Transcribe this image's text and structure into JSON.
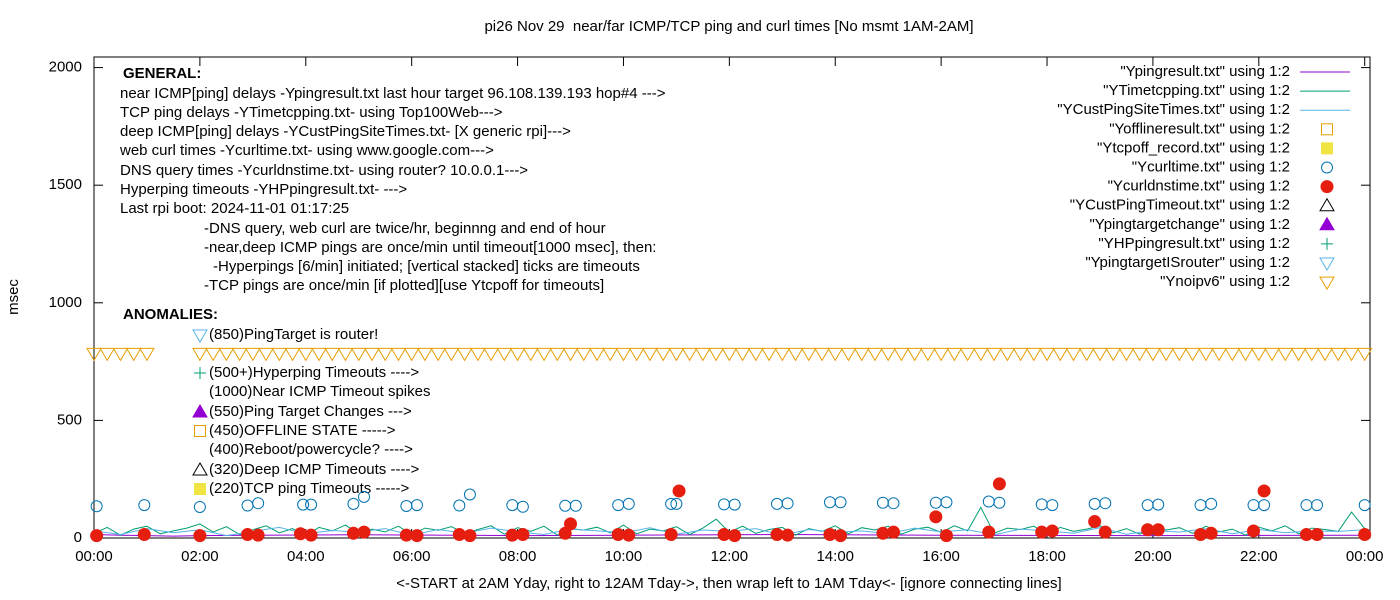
{
  "chart_data": {
    "type": "scatter",
    "title": "pi26 Nov 29  near/far ICMP/TCP ping and curl times [No msmt 1AM-2AM]",
    "x_label": "<-START at 2AM Yday, right to 12AM Tday->, then wrap left to 1AM Tday<- [ignore connecting lines]",
    "y_label": "msec",
    "xlim": [
      0,
      24.1
    ],
    "ylim": [
      0,
      2045
    ],
    "xticks": [
      {
        "value": 0,
        "label": "00:00"
      },
      {
        "value": 2,
        "label": "02:00"
      },
      {
        "value": 4,
        "label": "04:00"
      },
      {
        "value": 6,
        "label": "06:00"
      },
      {
        "value": 8,
        "label": "08:00"
      },
      {
        "value": 10,
        "label": "10:00"
      },
      {
        "value": 12,
        "label": "12:00"
      },
      {
        "value": 14,
        "label": "14:00"
      },
      {
        "value": 16,
        "label": "16:00"
      },
      {
        "value": 18,
        "label": "18:00"
      },
      {
        "value": 20,
        "label": "20:00"
      },
      {
        "value": 22,
        "label": "22:00"
      },
      {
        "value": 24,
        "label": "00:00"
      }
    ],
    "yticks": [
      0,
      500,
      1000,
      1500,
      2000
    ],
    "legend": "top-right",
    "annotations": [
      "GENERAL:",
      "near ICMP[ping] delays -Ypingresult.txt last hour target 96.108.139.193 hop#4 --->",
      "TCP ping delays -YTimetcpping.txt- using Top100Web--->",
      "deep ICMP[ping] delays -YCustPingSiteTimes.txt- [X generic rpi]--->",
      "web curl times -Ycurltime.txt- using www.google.com--->",
      "DNS query times -Ycurldnstime.txt- using router? 10.0.0.1--->",
      "Hyperping timeouts -YHPpingresult.txt- --->",
      "Last rpi boot: 2024-11-01 01:17:25",
      "-DNS query, web curl are twice/hr, beginnng and end of hour",
      "-near,deep ICMP pings are once/min until timeout[1000 msec], then:",
      "-Hyperpings [6/min] initiated; [vertical stacked] ticks are timeouts",
      "-TCP pings are once/min [if plotted][use Ytcpoff for timeouts]",
      "ANOMALIES:",
      "(850)PingTarget is router!",
      "(500+)Hyperping Timeouts ---->",
      "(1000)Near ICMP Timeout spikes",
      "(550)Ping Target Changes --->",
      "(450)OFFLINE STATE ----->",
      "(400)Reboot/powercycle? ---->",
      "(320)Deep ICMP Timeouts ---->",
      "(220)TCP ping Timeouts ----->"
    ],
    "series": [
      {
        "name": "\"Ypingresult.txt\" using 1:2",
        "color": "#9400d3",
        "style": "lines",
        "x": [
          0,
          0.5,
          1,
          1.5,
          2,
          3,
          5,
          8,
          10,
          13,
          16,
          20,
          24
        ],
        "values": [
          15,
          12,
          10,
          8,
          10,
          12,
          14,
          10,
          12,
          15,
          12,
          10,
          12
        ]
      },
      {
        "name": "\"YTimetcpping.txt\" using 1:2",
        "color": "#009e73",
        "style": "lines",
        "x": [
          0,
          0.25,
          0.5,
          0.75,
          1,
          1.25,
          1.5,
          1.75,
          2,
          2.25,
          2.5,
          2.75,
          3,
          3.25,
          3.5,
          3.75,
          4,
          4.25,
          4.5,
          4.75,
          5,
          5.25,
          5.5,
          5.75,
          6,
          6.25,
          6.5,
          6.75,
          7,
          7.25,
          7.5,
          7.75,
          8,
          8.25,
          8.5,
          8.75,
          9,
          9.25,
          9.5,
          9.75,
          10,
          10.25,
          10.5,
          10.75,
          11,
          11.25,
          11.5,
          11.75,
          12,
          12.25,
          12.5,
          12.75,
          13,
          13.25,
          13.5,
          13.75,
          14,
          14.25,
          14.5,
          14.75,
          15,
          15.25,
          15.5,
          15.75,
          16,
          16.25,
          16.5,
          16.75,
          17,
          17.25,
          17.5,
          17.75,
          18,
          18.25,
          18.5,
          18.75,
          19,
          19.25,
          19.5,
          19.75,
          20,
          20.25,
          20.5,
          20.75,
          21,
          21.25,
          21.5,
          21.75,
          22,
          22.25,
          22.5,
          22.75,
          23,
          23.25,
          23.5,
          23.75,
          24
        ],
        "values": [
          20,
          45,
          12,
          38,
          50,
          18,
          30,
          42,
          60,
          25,
          48,
          15,
          35,
          52,
          22,
          40,
          10,
          45,
          30,
          55,
          18,
          38,
          26,
          50,
          14,
          42,
          33,
          48,
          20,
          36,
          52,
          16,
          44,
          28,
          50,
          12,
          40,
          34,
          46,
          22,
          55,
          18,
          38,
          30,
          48,
          15,
          42,
          80,
          25,
          50,
          20,
          36,
          45,
          12,
          40,
          28,
          52,
          18,
          44,
          34,
          50,
          16,
          38,
          46,
          24,
          52,
          30,
          130,
          20,
          42,
          36,
          50,
          14,
          45,
          28,
          38,
          52,
          22,
          40,
          16,
          48,
          34,
          44,
          20,
          50,
          26,
          38,
          12,
          46,
          30,
          52,
          18,
          42,
          36,
          28,
          110,
          40
        ]
      },
      {
        "name": "\"YCustPingSiteTimes.txt\" using 1:2",
        "color": "#56b4e9",
        "style": "lines",
        "x": [
          0,
          0.5,
          1,
          1.5,
          2,
          2.5,
          3,
          3.5,
          4,
          4.5,
          5,
          5.5,
          6,
          6.5,
          7,
          7.5,
          8,
          8.5,
          9,
          9.5,
          10,
          10.5,
          11,
          11.5,
          12,
          12.5,
          13,
          13.5,
          14,
          14.5,
          15,
          15.5,
          16,
          16.5,
          17,
          17.5,
          18,
          18.5,
          19,
          19.5,
          20,
          20.5,
          21,
          21.5,
          22,
          22.5,
          23,
          23.5,
          24
        ],
        "values": [
          30,
          15,
          40,
          22,
          35,
          10,
          28,
          45,
          18,
          32,
          25,
          40,
          12,
          36,
          20,
          42,
          26,
          15,
          38,
          30,
          22,
          44,
          16,
          34,
          28,
          40,
          12,
          36,
          24,
          30,
          18,
          42,
          26,
          35,
          14,
          38,
          30,
          20,
          44,
          16,
          32,
          25,
          40,
          18,
          36,
          22,
          30,
          28,
          35
        ]
      },
      {
        "name": "\"Yofflineresult.txt\" using 1:2",
        "color": "#e69f00",
        "style": "open-square",
        "x": [],
        "values": []
      },
      {
        "name": "\"Ytcpoff_record.txt\" using 1:2",
        "color": "#f0e442",
        "style": "square",
        "x": [],
        "values": []
      },
      {
        "name": "\"Ycurltime.txt\" using 1:2",
        "color": "#0072b2",
        "style": "open-circle",
        "x": [
          0.05,
          0.95,
          2.0,
          2.9,
          3.1,
          3.95,
          4.1,
          4.9,
          5.1,
          5.9,
          6.1,
          6.9,
          7.1,
          7.9,
          8.1,
          8.9,
          9.1,
          9.9,
          10.1,
          10.9,
          11.0,
          11.9,
          12.1,
          12.9,
          13.1,
          13.9,
          14.1,
          14.9,
          15.1,
          15.9,
          16.1,
          16.9,
          17.1,
          17.9,
          18.1,
          18.9,
          19.1,
          19.9,
          20.1,
          20.9,
          21.1,
          21.9,
          22.1,
          22.9,
          23.1,
          24.0
        ],
        "values": [
          135,
          140,
          132,
          138,
          148,
          142,
          142,
          145,
          175,
          136,
          140,
          138,
          185,
          140,
          133,
          137,
          137,
          140,
          145,
          145,
          145,
          143,
          142,
          145,
          147,
          152,
          152,
          150,
          148,
          150,
          152,
          155,
          150,
          143,
          140,
          145,
          148,
          140,
          142,
          140,
          145,
          140,
          140,
          140,
          140,
          140
        ]
      },
      {
        "name": "\"Ycurldnstime.txt\" using 1:2",
        "color": "#e51e10",
        "style": "circle",
        "x": [
          0.05,
          0.95,
          2.0,
          2.9,
          3.1,
          3.9,
          4.1,
          4.9,
          5.1,
          5.9,
          6.1,
          6.9,
          7.1,
          7.9,
          8.1,
          8.9,
          9.0,
          9.9,
          10.1,
          10.9,
          11.05,
          11.9,
          12.1,
          12.9,
          13.1,
          13.9,
          14.1,
          14.9,
          15.1,
          15.9,
          16.1,
          16.9,
          17.1,
          17.9,
          18.1,
          18.9,
          19.1,
          19.9,
          20.1,
          20.9,
          21.1,
          21.9,
          22.1,
          22.9,
          23.1,
          24.0
        ],
        "values": [
          10,
          15,
          10,
          15,
          12,
          18,
          12,
          20,
          25,
          12,
          10,
          15,
          10,
          12,
          15,
          20,
          60,
          15,
          12,
          15,
          200,
          15,
          10,
          15,
          12,
          15,
          10,
          20,
          25,
          90,
          10,
          25,
          230,
          25,
          30,
          70,
          25,
          35,
          35,
          15,
          20,
          30,
          200,
          15,
          15,
          15
        ]
      },
      {
        "name": "\"YCustPingTimeout.txt\" using 1:2",
        "color": "#000000",
        "style": "open-triangle",
        "x": [],
        "values": []
      },
      {
        "name": "\"Ypingtargetchange\" using 1:2",
        "color": "#9400d3",
        "style": "triangle",
        "x": [],
        "values": []
      },
      {
        "name": "\"YHPpingresult.txt\" using 1:2",
        "color": "#009e73",
        "style": "plus",
        "x": [],
        "values": []
      },
      {
        "name": "\"YpingtargetISrouter\" using 1:2",
        "color": "#56b4e9",
        "style": "open-triangle-down",
        "x": [],
        "values": []
      },
      {
        "name": "\"Ynoipv6\" using 1:2",
        "color": "#e69f00",
        "style": "open-triangle-down",
        "x": [
          0,
          0.25,
          0.5,
          0.75,
          1,
          2,
          2.25,
          2.5,
          2.75,
          3,
          3.25,
          3.5,
          3.75,
          4,
          4.25,
          4.5,
          4.75,
          5,
          5.25,
          5.5,
          5.75,
          6,
          6.25,
          6.5,
          6.75,
          7,
          7.25,
          7.5,
          7.75,
          8,
          8.25,
          8.5,
          8.75,
          9,
          9.25,
          9.5,
          9.75,
          10,
          10.25,
          10.5,
          10.75,
          11,
          11.25,
          11.5,
          11.75,
          12,
          12.25,
          12.5,
          12.75,
          13,
          13.25,
          13.5,
          13.75,
          14,
          14.25,
          14.5,
          14.75,
          15,
          15.25,
          15.5,
          15.75,
          16,
          16.25,
          16.5,
          16.75,
          17,
          17.25,
          17.5,
          17.75,
          18,
          18.25,
          18.5,
          18.75,
          19,
          19.25,
          19.5,
          19.75,
          20,
          20.25,
          20.5,
          20.75,
          21,
          21.25,
          21.5,
          21.75,
          22,
          22.25,
          22.5,
          22.75,
          23,
          23.25,
          23.5,
          23.75,
          24
        ],
        "values": [
          785,
          785,
          785,
          785,
          785,
          785,
          785,
          785,
          785,
          785,
          785,
          785,
          785,
          785,
          785,
          785,
          785,
          785,
          785,
          785,
          785,
          785,
          785,
          785,
          785,
          785,
          785,
          785,
          785,
          785,
          785,
          785,
          785,
          785,
          785,
          785,
          785,
          785,
          785,
          785,
          785,
          785,
          785,
          785,
          785,
          785,
          785,
          785,
          785,
          785,
          785,
          785,
          785,
          785,
          785,
          785,
          785,
          785,
          785,
          785,
          785,
          785,
          785,
          785,
          785,
          785,
          785,
          785,
          785,
          785,
          785,
          785,
          785,
          785,
          785,
          785,
          785,
          785,
          785,
          785,
          785,
          785,
          785,
          785,
          785,
          785,
          785,
          785,
          785,
          785,
          785,
          785,
          785,
          785
        ]
      }
    ]
  }
}
